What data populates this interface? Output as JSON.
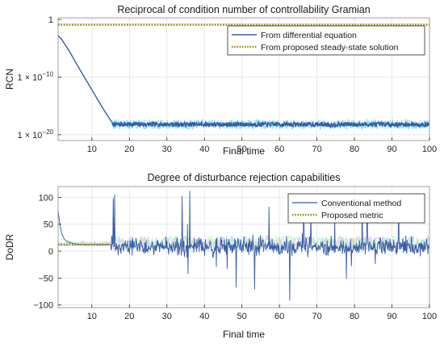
{
  "chart_data": [
    {
      "type": "line",
      "title": "Reciprocal of condition number of controllability Gramian",
      "xlabel": "Final time",
      "ylabel": "RCN",
      "xlim": [
        1,
        100
      ],
      "xticks": [
        10,
        20,
        30,
        40,
        50,
        60,
        70,
        80,
        90,
        100
      ],
      "xtick_labels": [
        "10",
        "20",
        "30",
        "40",
        "50",
        "60",
        "70",
        "80",
        "90",
        "100"
      ],
      "yscale": "log",
      "ylim_log10": [
        -21,
        0.3
      ],
      "yticks_log10": [
        0,
        -10,
        -20
      ],
      "ytick_labels": [
        "1",
        "1 × 10",
        "1 × 10"
      ],
      "ytick_exponents": [
        "",
        "−10",
        "−20"
      ],
      "grid": true,
      "legend_position": "top-right",
      "series": [
        {
          "name": "From differential equation",
          "color": "#3a5ba8",
          "style": "solid",
          "log10_values": {
            "x": [
              1,
              2,
              4,
              6,
              8,
              10,
              12,
              13,
              14,
              15,
              15.5
            ],
            "y": [
              -2.8,
              -3.5,
              -5.5,
              -7.8,
              -10.0,
              -12.2,
              -14.4,
              -15.5,
              -16.5,
              -17.5,
              -18.0
            ]
          },
          "noise_band_log10": {
            "x_start": 15.5,
            "x_end": 100,
            "center": -18.2,
            "amplitude": 0.4
          }
        },
        {
          "name": "From proposed steady-state solution",
          "color": "#9a8a1c",
          "style": "dotted",
          "log10_values": {
            "x": [
              1,
              100
            ],
            "y": [
              -0.9,
              -0.9
            ]
          }
        }
      ]
    },
    {
      "type": "line",
      "title": "Degree of disturbance rejection capabilities",
      "xlabel": "Final time",
      "ylabel": "DoDR",
      "xlim": [
        1,
        100
      ],
      "ylim": [
        -105,
        120
      ],
      "xticks": [
        10,
        20,
        30,
        40,
        50,
        60,
        70,
        80,
        90,
        100
      ],
      "xtick_labels": [
        "10",
        "20",
        "30",
        "40",
        "50",
        "60",
        "70",
        "80",
        "90",
        "100"
      ],
      "yticks": [
        100,
        50,
        0,
        -50,
        -100
      ],
      "ytick_labels": [
        "100",
        "50",
        "0",
        "−50",
        "−100"
      ],
      "grid": true,
      "legend_position": "top-right",
      "series": [
        {
          "name": "Conventional method",
          "color": "#3a5ba8",
          "style": "solid",
          "values": {
            "x": [
              1,
              1.5,
              2,
              2.5,
              3,
              4,
              5,
              6,
              8,
              10,
              12,
              14,
              15
            ],
            "y": [
              75,
              48,
              32,
              24,
              20,
              16,
              14,
              13,
              12,
              12,
              12,
              12,
              12
            ]
          },
          "noise_region": {
            "x_start": 15,
            "x_end": 100,
            "center": 8,
            "typical_amplitude": 25,
            "max_amplitude": 105
          }
        },
        {
          "name": "Proposed metric",
          "color": "#9a8a1c",
          "style": "dotted",
          "values": {
            "x": [
              1,
              15
            ],
            "y": [
              12,
              12
            ]
          }
        }
      ]
    }
  ]
}
